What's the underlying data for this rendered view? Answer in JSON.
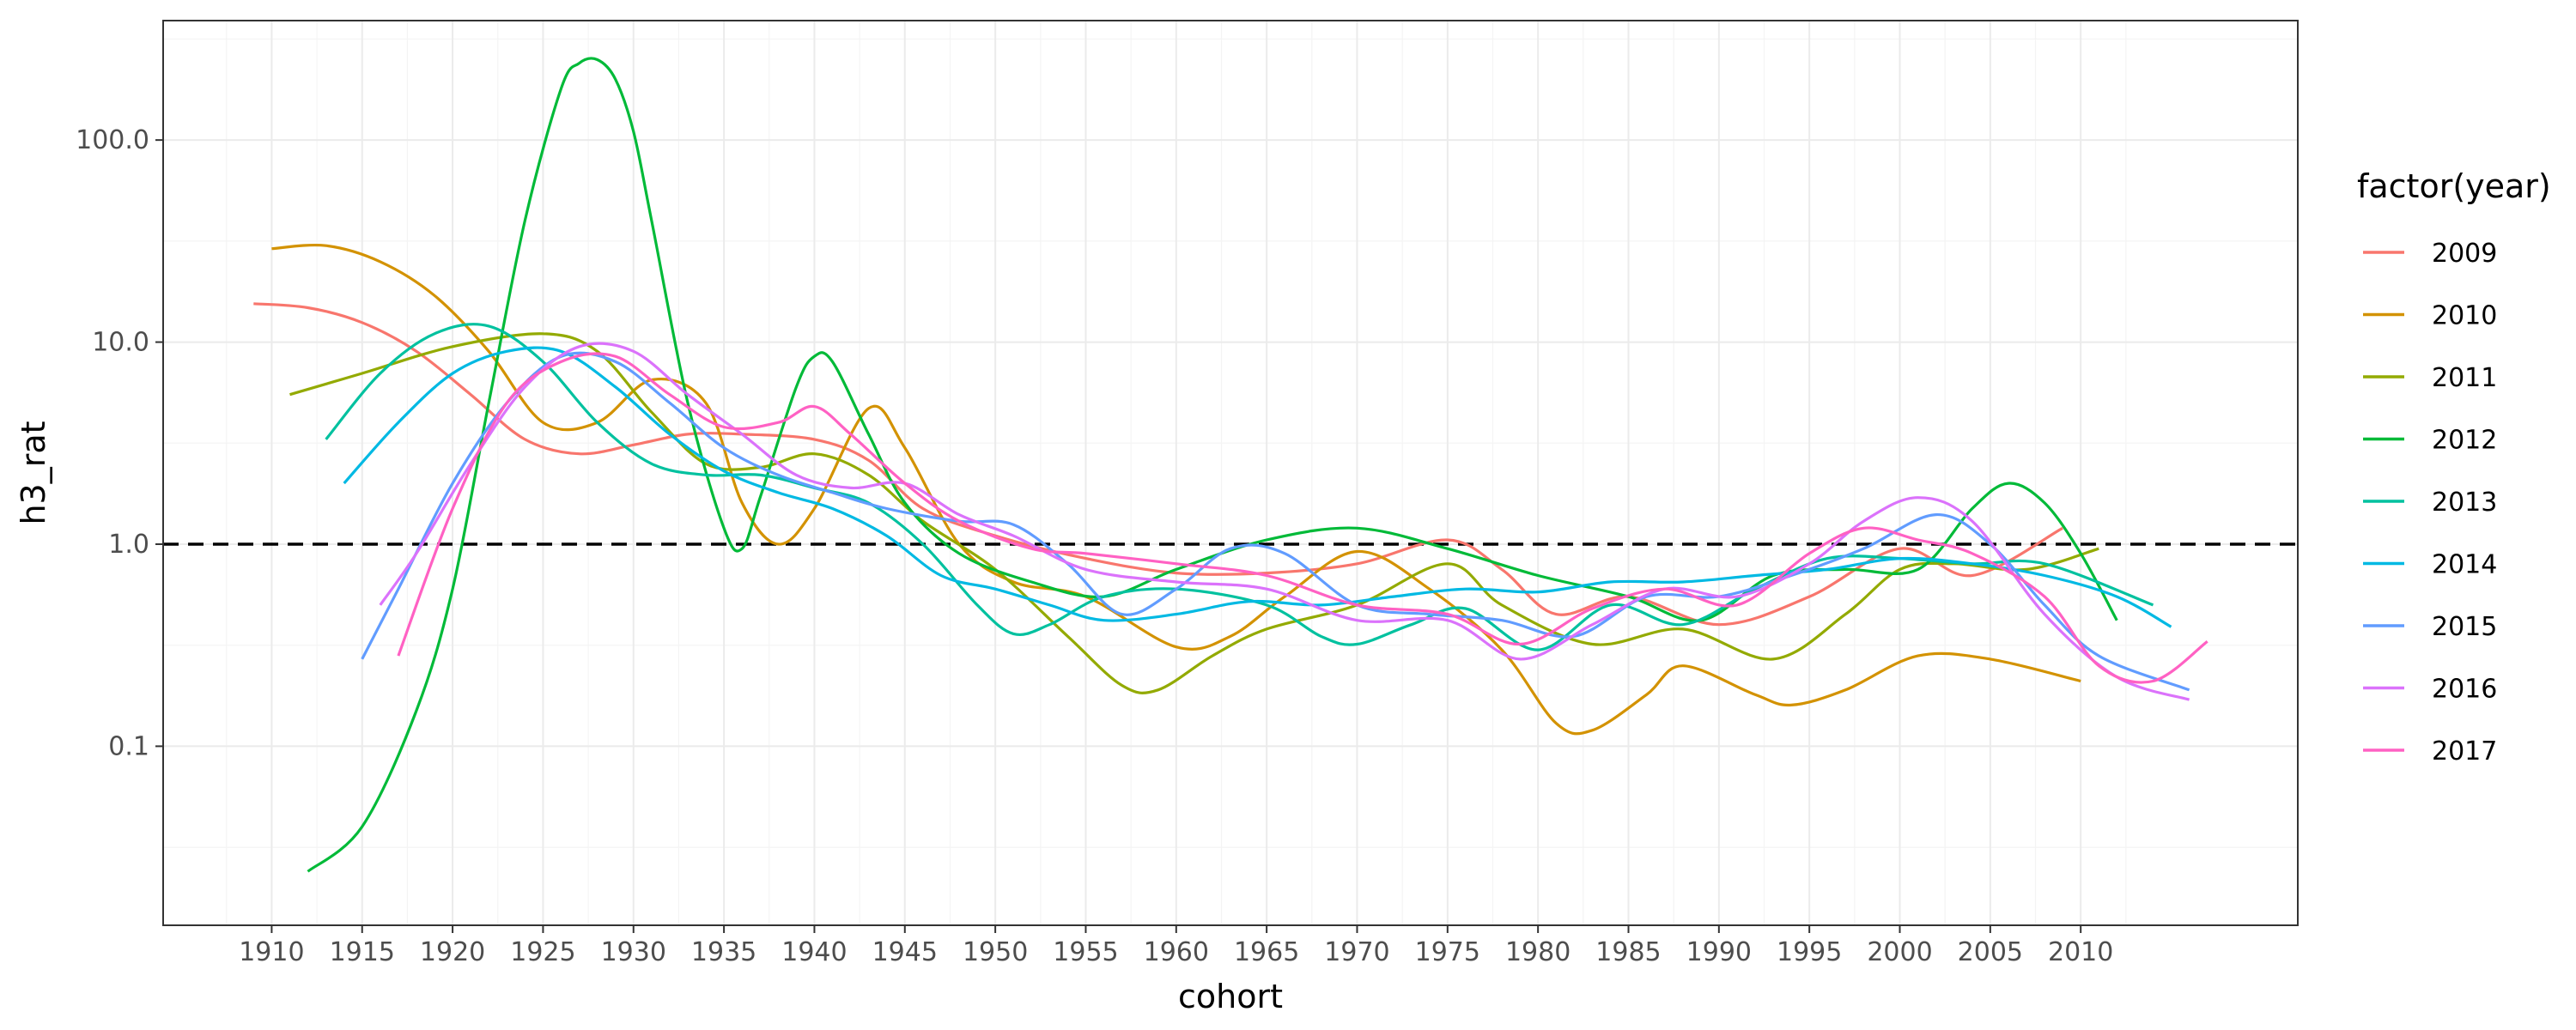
{
  "chart_data": {
    "type": "line",
    "title": "",
    "xlabel": "cohort",
    "ylabel": "h3_rat",
    "yscale": "log10",
    "xlim": [
      1904,
      2022
    ],
    "ylim": [
      0.013,
      390
    ],
    "x_ticks": [
      1910,
      1915,
      1920,
      1925,
      1930,
      1935,
      1940,
      1945,
      1950,
      1955,
      1960,
      1965,
      1970,
      1975,
      1980,
      1985,
      1990,
      1995,
      2000,
      2005,
      2010
    ],
    "x_tick_labels": [
      "1910",
      "1915",
      "1920",
      "1925",
      "1930",
      "1935",
      "1940",
      "1945",
      "1950",
      "1955",
      "1960",
      "1965",
      "1970",
      "1975",
      "1980",
      "1985",
      "1990",
      "1995",
      "2000",
      "2005",
      "2010"
    ],
    "y_ticks": [
      0.1,
      1.0,
      10.0,
      100.0
    ],
    "y_tick_labels": [
      "0.1",
      "1.0",
      "10.0",
      "100.0"
    ],
    "grid": true,
    "reference_line": {
      "y": 1.0,
      "style": "dashed",
      "color": "#000000"
    },
    "legend": {
      "title": "factor(year)",
      "position": "right"
    },
    "series": [
      {
        "name": "2009",
        "color": "#F8766D",
        "x": [
          1909,
          1912,
          1915,
          1918,
          1921,
          1924,
          1927,
          1930,
          1933,
          1936,
          1940,
          1943,
          1946,
          1950,
          1955,
          1960,
          1965,
          1970,
          1975,
          1978,
          1981,
          1985,
          1990,
          1995,
          2000,
          2004,
          2009
        ],
        "y": [
          15.5,
          14.8,
          12.5,
          9.0,
          5.5,
          3.3,
          2.8,
          3.1,
          3.5,
          3.5,
          3.3,
          2.6,
          1.5,
          1.1,
          0.85,
          0.72,
          0.72,
          0.8,
          1.05,
          0.75,
          0.45,
          0.55,
          0.4,
          0.55,
          0.95,
          0.7,
          1.2
        ]
      },
      {
        "name": "2010",
        "color": "#D39200",
        "x": [
          1910,
          1913,
          1916,
          1919,
          1922,
          1925,
          1928,
          1931,
          1934,
          1936,
          1938,
          1940,
          1943,
          1945,
          1948,
          1951,
          1955,
          1960,
          1963,
          1966,
          1970,
          1974,
          1978,
          1981,
          1983,
          1986,
          1988,
          1992,
          1994,
          1997,
          2001,
          2005,
          2010
        ],
        "y": [
          29.0,
          30.0,
          25.0,
          17.0,
          9.0,
          4.0,
          4.0,
          6.5,
          5.0,
          1.6,
          1.0,
          1.5,
          4.7,
          3.0,
          1.0,
          0.65,
          0.55,
          0.31,
          0.35,
          0.55,
          0.92,
          0.6,
          0.3,
          0.13,
          0.12,
          0.18,
          0.25,
          0.18,
          0.16,
          0.19,
          0.28,
          0.27,
          0.21
        ]
      },
      {
        "name": "2011",
        "color": "#93AA00",
        "x": [
          1911,
          1915,
          1920,
          1925,
          1928,
          1931,
          1934,
          1937,
          1940,
          1943,
          1946,
          1950,
          1954,
          1957,
          1959,
          1962,
          1965,
          1970,
          1975,
          1978,
          1983,
          1988,
          1993,
          1997,
          2000,
          2003,
          2007,
          2011
        ],
        "y": [
          5.5,
          7.0,
          9.5,
          11.0,
          9.0,
          4.5,
          2.5,
          2.4,
          2.8,
          2.2,
          1.3,
          0.75,
          0.35,
          0.2,
          0.19,
          0.28,
          0.38,
          0.5,
          0.8,
          0.5,
          0.32,
          0.38,
          0.27,
          0.45,
          0.75,
          0.8,
          0.75,
          0.95
        ]
      },
      {
        "name": "2012",
        "color": "#00BA38",
        "x": [
          1912,
          1915,
          1918,
          1920,
          1922,
          1924,
          1926,
          1927,
          1928,
          1929,
          1930,
          1931,
          1933,
          1935,
          1936,
          1937,
          1939,
          1940,
          1941,
          1943,
          1945,
          1948,
          1952,
          1956,
          1960,
          1965,
          1970,
          1975,
          1980,
          1985,
          1989,
          1993,
          1997,
          2001,
          2004,
          2006,
          2008,
          2010,
          2012
        ],
        "y": [
          0.024,
          0.04,
          0.15,
          0.6,
          5.0,
          40.0,
          180.0,
          240.0,
          250.0,
          200.0,
          110.0,
          40.0,
          5.0,
          1.2,
          0.95,
          1.7,
          6.0,
          8.5,
          8.0,
          3.5,
          1.6,
          0.9,
          0.65,
          0.55,
          0.75,
          1.05,
          1.2,
          0.95,
          0.7,
          0.55,
          0.42,
          0.7,
          0.75,
          0.75,
          1.5,
          2.0,
          1.6,
          0.9,
          0.42
        ]
      },
      {
        "name": "2013",
        "color": "#00C19F",
        "x": [
          1913,
          1916,
          1919,
          1922,
          1925,
          1928,
          1931,
          1934,
          1937,
          1940,
          1943,
          1946,
          1949,
          1951,
          1953,
          1956,
          1960,
          1965,
          1968,
          1970,
          1973,
          1976,
          1980,
          1984,
          1988,
          1992,
          1996,
          2000,
          2004,
          2008,
          2014
        ],
        "y": [
          3.3,
          7.0,
          11.0,
          12.0,
          8.0,
          4.0,
          2.5,
          2.2,
          2.2,
          1.9,
          1.6,
          1.0,
          0.5,
          0.36,
          0.4,
          0.55,
          0.6,
          0.5,
          0.35,
          0.32,
          0.4,
          0.48,
          0.3,
          0.5,
          0.4,
          0.6,
          0.85,
          0.85,
          0.8,
          0.8,
          0.5
        ]
      },
      {
        "name": "2014",
        "color": "#00B9E3",
        "x": [
          1914,
          1917,
          1920,
          1923,
          1926,
          1929,
          1932,
          1935,
          1938,
          1941,
          1944,
          1947,
          1950,
          1953,
          1956,
          1960,
          1964,
          1968,
          1972,
          1976,
          1980,
          1984,
          1988,
          1992,
          1996,
          2000,
          2004,
          2008,
          2012,
          2015
        ],
        "y": [
          2.0,
          4.0,
          7.0,
          9.0,
          9.0,
          6.0,
          3.5,
          2.3,
          1.8,
          1.5,
          1.1,
          0.7,
          0.6,
          0.5,
          0.42,
          0.45,
          0.52,
          0.5,
          0.55,
          0.6,
          0.58,
          0.65,
          0.65,
          0.7,
          0.75,
          0.85,
          0.8,
          0.7,
          0.55,
          0.39
        ]
      },
      {
        "name": "2015",
        "color": "#619CFF",
        "x": [
          1915,
          1917,
          1920,
          1923,
          1926,
          1929,
          1932,
          1935,
          1938,
          1941,
          1944,
          1948,
          1951,
          1954,
          1957,
          1960,
          1963,
          1966,
          1970,
          1974,
          1978,
          1982,
          1986,
          1990,
          1994,
          1998,
          2002,
          2005,
          2008,
          2011,
          2016
        ],
        "y": [
          0.27,
          0.6,
          2.0,
          5.0,
          8.5,
          8.0,
          5.0,
          3.0,
          2.2,
          1.8,
          1.5,
          1.3,
          1.25,
          0.8,
          0.45,
          0.6,
          0.95,
          0.9,
          0.5,
          0.45,
          0.42,
          0.35,
          0.55,
          0.55,
          0.7,
          0.95,
          1.4,
          1.0,
          0.5,
          0.28,
          0.19
        ]
      },
      {
        "name": "2016",
        "color": "#DB72FB",
        "x": [
          1916,
          1918,
          1921,
          1924,
          1927,
          1930,
          1933,
          1936,
          1939,
          1942,
          1945,
          1948,
          1951,
          1955,
          1960,
          1965,
          1970,
          1975,
          1979,
          1983,
          1987,
          1991,
          1995,
          1998,
          2001,
          2004,
          2008,
          2012,
          2016
        ],
        "y": [
          0.5,
          0.9,
          2.5,
          6.0,
          9.5,
          9.0,
          5.5,
          3.5,
          2.2,
          1.9,
          2.0,
          1.4,
          1.1,
          0.75,
          0.65,
          0.6,
          0.42,
          0.42,
          0.27,
          0.4,
          0.6,
          0.55,
          0.8,
          1.3,
          1.7,
          1.3,
          0.45,
          0.22,
          0.17
        ]
      },
      {
        "name": "2017",
        "color": "#FF61C3",
        "x": [
          1917,
          1920,
          1923,
          1926,
          1929,
          1932,
          1935,
          1938,
          1940,
          1942,
          1945,
          1948,
          1952,
          1955,
          1960,
          1965,
          1970,
          1975,
          1979,
          1983,
          1987,
          1991,
          1995,
          1998,
          2001,
          2004,
          2008,
          2011,
          2014,
          2017
        ],
        "y": [
          0.28,
          1.5,
          5.0,
          8.0,
          8.5,
          5.5,
          3.8,
          4.0,
          4.8,
          3.5,
          2.0,
          1.3,
          0.95,
          0.9,
          0.8,
          0.7,
          0.5,
          0.45,
          0.32,
          0.48,
          0.6,
          0.5,
          0.9,
          1.2,
          1.05,
          0.9,
          0.55,
          0.25,
          0.21,
          0.33
        ]
      }
    ]
  }
}
